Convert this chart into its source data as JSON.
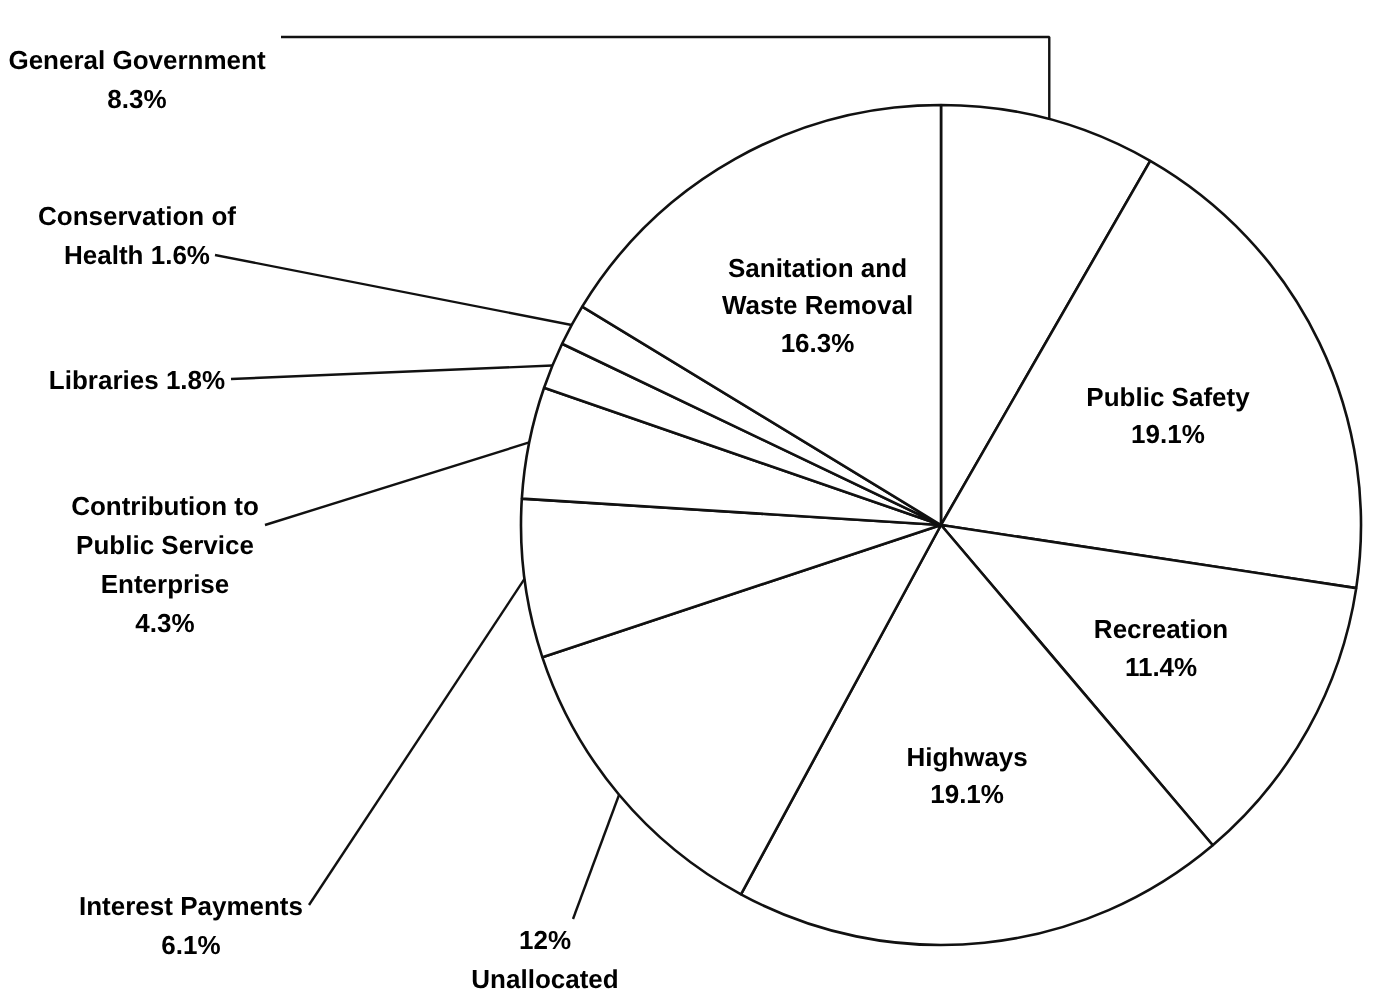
{
  "chart_data": {
    "type": "pie",
    "categories": [
      "General Government",
      "Public Safety",
      "Recreation",
      "Highways",
      "Unallocated",
      "Interest Payments",
      "Contribution to Public Service Enterprise",
      "Libraries",
      "Conservation of Health",
      "Sanitation and Waste Removal"
    ],
    "values": [
      8.3,
      19.1,
      11.4,
      19.1,
      12,
      6.1,
      4.3,
      1.8,
      1.6,
      16.3
    ],
    "colors": [
      "#ffffff",
      "#ffffff",
      "#ffffff",
      "#ffffff",
      "#ffffff",
      "#ffffff",
      "#ffffff",
      "#ffffff",
      "#ffffff",
      "#ffffff"
    ],
    "value_labels": [
      "8.3%",
      "19.1%",
      "11.4%",
      "19.1%",
      "12%",
      "6.1%",
      "4.3%",
      "1.8%",
      "1.6%",
      "16.3%"
    ]
  }
}
